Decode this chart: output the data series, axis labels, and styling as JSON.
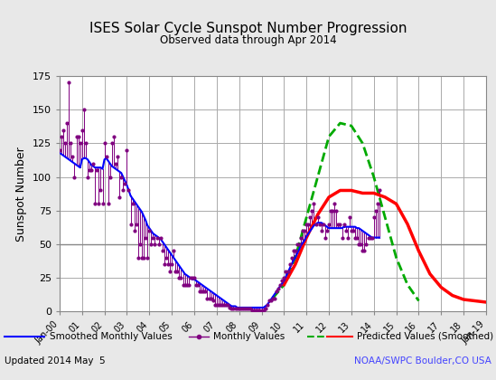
{
  "title": "ISES Solar Cycle Sunspot Number Progression",
  "subtitle": "Observed data through Apr 2014",
  "ylabel": "Sunspot Number",
  "footer_left": "Updated 2014 May  5",
  "footer_right": "NOAA/SWPC Boulder,CO USA",
  "ylim": [
    0,
    175
  ],
  "yticks": [
    0,
    25,
    50,
    75,
    100,
    125,
    150,
    175
  ],
  "bg_color": "#e8e8e8",
  "plot_bg": "#ffffff",
  "smoothed_color": "#0000ff",
  "monthly_color": "#800080",
  "predicted_green_color": "#00aa00",
  "predicted_red_color": "#ff0000",
  "x_tick_labels": [
    "Jan-00",
    "01",
    "02",
    "03",
    "04",
    "05",
    "06",
    "07",
    "08",
    "09",
    "10",
    "11",
    "12",
    "13",
    "14",
    "15",
    "16",
    "17",
    "18",
    "Jan-19"
  ],
  "x_tick_positions": [
    2000.0,
    2001.0,
    2002.0,
    2003.0,
    2004.0,
    2005.0,
    2006.0,
    2007.0,
    2008.0,
    2009.0,
    2010.0,
    2011.0,
    2012.0,
    2013.0,
    2014.0,
    2015.0,
    2016.0,
    2017.0,
    2018.0,
    2019.0
  ],
  "xlim": [
    2000.0,
    2019.0
  ],
  "smoothed_x": [
    2000.0,
    2000.083,
    2000.167,
    2000.25,
    2000.333,
    2000.417,
    2000.5,
    2000.583,
    2000.667,
    2000.75,
    2000.833,
    2000.917,
    2001.0,
    2001.083,
    2001.167,
    2001.25,
    2001.333,
    2001.417,
    2001.5,
    2001.583,
    2001.667,
    2001.75,
    2001.833,
    2001.917,
    2002.0,
    2002.083,
    2002.167,
    2002.25,
    2002.333,
    2002.417,
    2002.5,
    2002.583,
    2002.667,
    2002.75,
    2002.833,
    2002.917,
    2003.0,
    2003.083,
    2003.167,
    2003.25,
    2003.333,
    2003.417,
    2003.5,
    2003.583,
    2003.667,
    2003.75,
    2003.833,
    2003.917,
    2004.0,
    2004.083,
    2004.167,
    2004.25,
    2004.333,
    2004.417,
    2004.5,
    2004.583,
    2004.667,
    2004.75,
    2004.833,
    2004.917,
    2005.0,
    2005.083,
    2005.167,
    2005.25,
    2005.333,
    2005.417,
    2005.5,
    2005.583,
    2005.667,
    2005.75,
    2005.833,
    2005.917,
    2006.0,
    2006.083,
    2006.167,
    2006.25,
    2006.333,
    2006.417,
    2006.5,
    2006.583,
    2006.667,
    2006.75,
    2006.833,
    2006.917,
    2007.0,
    2007.083,
    2007.167,
    2007.25,
    2007.333,
    2007.417,
    2007.5,
    2007.583,
    2007.667,
    2007.75,
    2007.833,
    2007.917,
    2008.0,
    2008.083,
    2008.167,
    2008.25,
    2008.333,
    2008.417,
    2008.5,
    2008.583,
    2008.667,
    2008.75,
    2008.833,
    2008.917,
    2009.0,
    2009.083,
    2009.167,
    2009.25,
    2009.333,
    2009.417,
    2009.5,
    2009.583,
    2009.667,
    2009.75,
    2009.833,
    2009.917,
    2010.0,
    2010.083,
    2010.167,
    2010.25,
    2010.333,
    2010.417,
    2010.5,
    2010.583,
    2010.667,
    2010.75,
    2010.833,
    2010.917,
    2011.0,
    2011.083,
    2011.167,
    2011.25,
    2011.333,
    2011.417,
    2011.5,
    2011.583,
    2011.667,
    2011.75,
    2011.833,
    2011.917,
    2012.0,
    2012.083,
    2012.167,
    2012.25,
    2012.333,
    2012.417,
    2012.5,
    2012.583,
    2012.667,
    2012.75,
    2012.833,
    2012.917,
    2013.0,
    2013.083,
    2013.167,
    2013.25,
    2013.333,
    2013.417,
    2013.5,
    2013.583,
    2013.667,
    2013.75,
    2013.833,
    2013.917,
    2014.0,
    2014.083,
    2014.167,
    2014.25
  ],
  "smoothed_y": [
    118,
    117,
    116,
    115,
    114,
    113,
    112,
    111,
    110,
    109,
    108,
    107,
    113,
    114,
    114,
    113,
    111,
    109,
    108,
    107,
    107,
    107,
    107,
    106,
    113,
    114,
    112,
    110,
    108,
    107,
    106,
    105,
    104,
    103,
    100,
    97,
    94,
    90,
    86,
    84,
    82,
    80,
    78,
    76,
    74,
    71,
    68,
    64,
    62,
    60,
    58,
    57,
    56,
    55,
    54,
    52,
    50,
    48,
    46,
    44,
    42,
    40,
    38,
    36,
    34,
    32,
    30,
    28,
    27,
    26,
    25,
    24,
    24,
    23,
    22,
    21,
    20,
    19,
    18,
    17,
    16,
    15,
    14,
    13,
    12,
    11,
    10,
    9,
    8,
    7,
    6,
    5,
    4,
    4,
    4,
    3,
    3,
    3,
    3,
    3,
    3,
    3,
    3,
    3,
    3,
    3,
    3,
    3,
    3,
    3,
    4,
    5,
    7,
    9,
    11,
    13,
    15,
    17,
    19,
    21,
    23,
    26,
    29,
    32,
    35,
    38,
    40,
    43,
    46,
    49,
    51,
    53,
    56,
    58,
    60,
    62,
    64,
    65,
    66,
    66,
    66,
    65,
    64,
    63,
    62,
    62,
    62,
    62,
    62,
    62,
    62,
    62,
    63,
    63,
    63,
    63,
    63,
    63,
    63,
    62,
    62,
    61,
    60,
    59,
    58,
    57,
    56,
    55,
    55,
    55,
    55,
    55
  ],
  "monthly_x": [
    2000.0,
    2000.083,
    2000.167,
    2000.25,
    2000.333,
    2000.417,
    2000.5,
    2000.583,
    2000.667,
    2000.75,
    2000.833,
    2000.917,
    2001.0,
    2001.083,
    2001.167,
    2001.25,
    2001.333,
    2001.417,
    2001.5,
    2001.583,
    2001.667,
    2001.75,
    2001.833,
    2001.917,
    2002.0,
    2002.083,
    2002.167,
    2002.25,
    2002.333,
    2002.417,
    2002.5,
    2002.583,
    2002.667,
    2002.75,
    2002.833,
    2002.917,
    2003.0,
    2003.083,
    2003.167,
    2003.25,
    2003.333,
    2003.417,
    2003.5,
    2003.583,
    2003.667,
    2003.75,
    2003.833,
    2003.917,
    2004.0,
    2004.083,
    2004.167,
    2004.25,
    2004.333,
    2004.417,
    2004.5,
    2004.583,
    2004.667,
    2004.75,
    2004.833,
    2004.917,
    2005.0,
    2005.083,
    2005.167,
    2005.25,
    2005.333,
    2005.417,
    2005.5,
    2005.583,
    2005.667,
    2005.75,
    2005.833,
    2005.917,
    2006.0,
    2006.083,
    2006.167,
    2006.25,
    2006.333,
    2006.417,
    2006.5,
    2006.583,
    2006.667,
    2006.75,
    2006.833,
    2006.917,
    2007.0,
    2007.083,
    2007.167,
    2007.25,
    2007.333,
    2007.417,
    2007.5,
    2007.583,
    2007.667,
    2007.75,
    2007.833,
    2007.917,
    2008.0,
    2008.083,
    2008.167,
    2008.25,
    2008.333,
    2008.417,
    2008.5,
    2008.583,
    2008.667,
    2008.75,
    2008.833,
    2008.917,
    2009.0,
    2009.083,
    2009.167,
    2009.25,
    2009.333,
    2009.417,
    2009.5,
    2009.583,
    2009.667,
    2009.75,
    2009.833,
    2009.917,
    2010.0,
    2010.083,
    2010.167,
    2010.25,
    2010.333,
    2010.417,
    2010.5,
    2010.583,
    2010.667,
    2010.75,
    2010.833,
    2010.917,
    2011.0,
    2011.083,
    2011.167,
    2011.25,
    2011.333,
    2011.417,
    2011.5,
    2011.583,
    2011.667,
    2011.75,
    2011.833,
    2011.917,
    2012.0,
    2012.083,
    2012.167,
    2012.25,
    2012.333,
    2012.417,
    2012.5,
    2012.583,
    2012.667,
    2012.75,
    2012.833,
    2012.917,
    2013.0,
    2013.083,
    2013.167,
    2013.25,
    2013.333,
    2013.417,
    2013.5,
    2013.583,
    2013.667,
    2013.75,
    2013.833,
    2013.917,
    2014.0,
    2014.083,
    2014.167,
    2014.25
  ],
  "monthly_y": [
    120,
    130,
    135,
    125,
    140,
    170,
    125,
    115,
    100,
    130,
    130,
    125,
    135,
    150,
    125,
    100,
    105,
    105,
    110,
    80,
    105,
    80,
    90,
    80,
    125,
    115,
    80,
    100,
    125,
    130,
    110,
    115,
    85,
    100,
    90,
    95,
    120,
    90,
    65,
    80,
    60,
    65,
    40,
    50,
    40,
    40,
    55,
    40,
    60,
    50,
    55,
    50,
    55,
    50,
    55,
    45,
    35,
    40,
    35,
    30,
    35,
    45,
    30,
    30,
    25,
    25,
    20,
    20,
    20,
    20,
    25,
    25,
    25,
    20,
    20,
    15,
    15,
    15,
    15,
    10,
    10,
    10,
    8,
    5,
    5,
    5,
    5,
    5,
    5,
    5,
    5,
    3,
    2,
    2,
    2,
    2,
    2,
    2,
    2,
    2,
    2,
    2,
    2,
    1,
    1,
    1,
    1,
    1,
    1,
    1,
    2,
    5,
    8,
    8,
    10,
    10,
    15,
    17,
    20,
    23,
    25,
    30,
    30,
    35,
    40,
    45,
    45,
    50,
    50,
    55,
    60,
    60,
    65,
    65,
    70,
    75,
    80,
    65,
    70,
    65,
    60,
    65,
    55,
    60,
    65,
    75,
    75,
    80,
    75,
    65,
    65,
    55,
    65,
    60,
    55,
    70,
    60,
    60,
    55,
    55,
    50,
    50,
    45,
    45,
    50,
    55,
    55,
    55,
    70,
    75,
    80,
    90
  ],
  "pred_green_x": [
    2009.5,
    2010.0,
    2010.5,
    2011.0,
    2011.5,
    2012.0,
    2012.5,
    2013.0,
    2013.5,
    2014.0,
    2014.5,
    2015.0,
    2015.5,
    2016.0
  ],
  "pred_green_y": [
    10,
    20,
    40,
    70,
    100,
    130,
    140,
    138,
    125,
    100,
    70,
    40,
    20,
    8
  ],
  "pred_red_x": [
    2010.0,
    2010.5,
    2011.0,
    2011.5,
    2012.0,
    2012.5,
    2013.0,
    2013.5,
    2014.0,
    2014.5,
    2015.0,
    2015.5,
    2016.0,
    2016.5,
    2017.0,
    2017.5,
    2018.0,
    2018.5,
    2019.0
  ],
  "pred_red_y": [
    20,
    35,
    55,
    72,
    85,
    90,
    90,
    88,
    88,
    85,
    80,
    65,
    45,
    28,
    18,
    12,
    9,
    8,
    7
  ],
  "legend_items": [
    {
      "label": "Smoothed Monthly Values",
      "color": "#0000ff",
      "linestyle": "-",
      "marker": null
    },
    {
      "label": "Monthly Values",
      "color": "#800080",
      "linestyle": "-",
      "marker": "o"
    },
    {
      "label": "Predicted Values (Smoothed)",
      "color_green": "#00aa00",
      "color_red": "#ff0000",
      "linestyle": "--"
    }
  ]
}
